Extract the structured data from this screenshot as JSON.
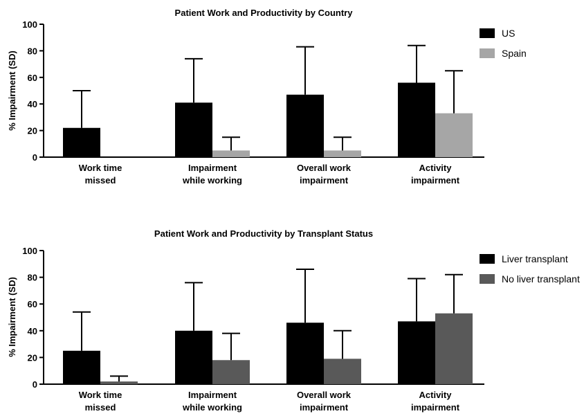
{
  "chart_data": [
    {
      "type": "bar",
      "title": "Patient Work and Productivity by Country",
      "ylabel": "% Impairment (SD)",
      "xlabel": "",
      "ylim": [
        0,
        100
      ],
      "yticks": [
        0,
        20,
        40,
        60,
        80,
        100
      ],
      "categories": [
        [
          "Work time",
          "missed"
        ],
        [
          "Impairment",
          "while working"
        ],
        [
          "Overall work",
          "impairment"
        ],
        [
          "Activity",
          "impairment"
        ]
      ],
      "series": [
        {
          "name": "US",
          "color": "#000000",
          "values": [
            22,
            41,
            47,
            56
          ],
          "sd": [
            28,
            33,
            36,
            28
          ]
        },
        {
          "name": "Spain",
          "color": "#a6a6a6",
          "values": [
            null,
            5,
            5,
            33
          ],
          "sd": [
            null,
            10,
            10,
            32
          ]
        }
      ],
      "legend": "top-right",
      "grid": false
    },
    {
      "type": "bar",
      "title": "Patient Work and Productivity by Transplant Status",
      "ylabel": "% Impairment (SD)",
      "xlabel": "",
      "ylim": [
        0,
        100
      ],
      "yticks": [
        0,
        20,
        40,
        60,
        80,
        100
      ],
      "categories": [
        [
          "Work time",
          "missed"
        ],
        [
          "Impairment",
          "while working"
        ],
        [
          "Overall work",
          "impairment"
        ],
        [
          "Activity",
          "impairment"
        ]
      ],
      "series": [
        {
          "name": "Liver transplant",
          "color": "#000000",
          "values": [
            25,
            40,
            46,
            47
          ],
          "sd": [
            29,
            36,
            40,
            32
          ]
        },
        {
          "name": "No liver transplant",
          "color": "#595959",
          "values": [
            2,
            18,
            19,
            53
          ],
          "sd": [
            4,
            20,
            21,
            29
          ]
        }
      ],
      "legend": "top-right",
      "grid": false
    }
  ]
}
